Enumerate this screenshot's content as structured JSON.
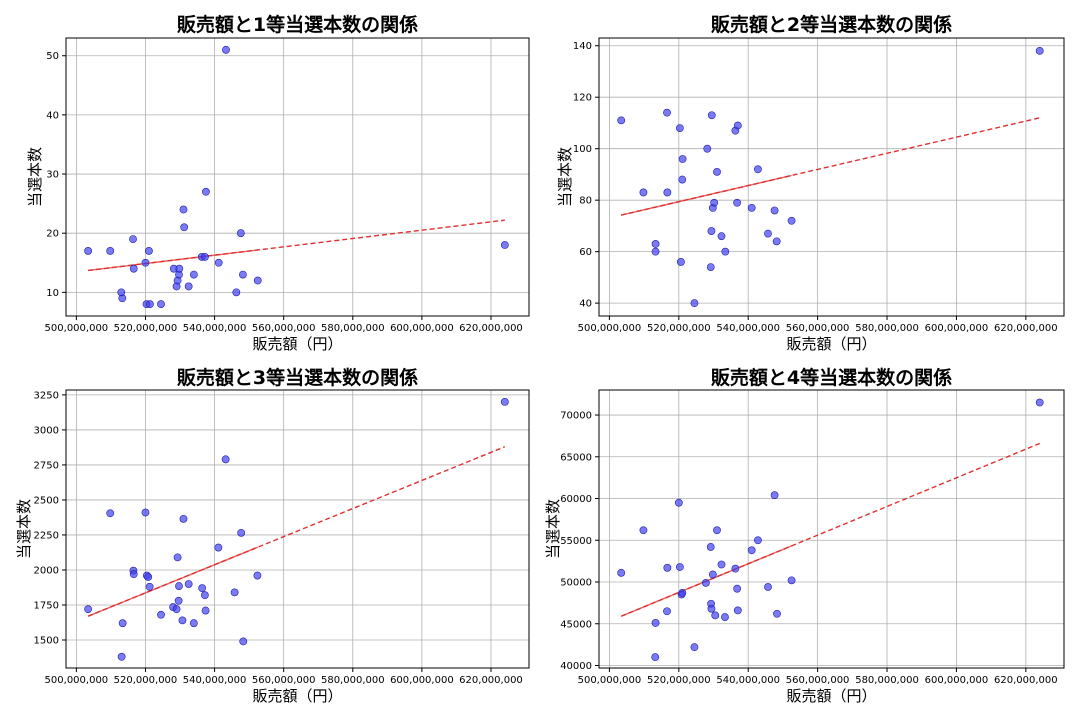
{
  "colors": {
    "point": "#3b3bf0",
    "point_edge": "#1f1fa8",
    "trend": "#e03030",
    "grid": "#b0b0b0"
  },
  "chart_data": [
    {
      "type": "scatter",
      "title": "販売額と1等当選本数の関係",
      "xlabel": "販売額（円）",
      "ylabel": "当選本数",
      "xlim": [
        497000000,
        631000000
      ],
      "ylim": [
        6,
        53
      ],
      "xticks": [
        500000000,
        520000000,
        540000000,
        560000000,
        580000000,
        600000000,
        620000000
      ],
      "xticklabels": [
        "500,000,000",
        "520,000,000",
        "540,000,000",
        "560,000,000",
        "580,000,000",
        "600,000,000",
        "620,000,000"
      ],
      "yticks": [
        10,
        20,
        30,
        40,
        50
      ],
      "yticklabels": [
        "10",
        "20",
        "30",
        "40",
        "50"
      ],
      "grid": true,
      "points": [
        [
          503400000,
          17
        ],
        [
          509800000,
          17
        ],
        [
          513300000,
          9
        ],
        [
          513000000,
          10
        ],
        [
          516600000,
          14
        ],
        [
          516400000,
          19
        ],
        [
          520000000,
          15
        ],
        [
          520300000,
          8
        ],
        [
          521000000,
          17
        ],
        [
          521300000,
          8
        ],
        [
          524500000,
          8
        ],
        [
          528200000,
          14
        ],
        [
          529000000,
          11
        ],
        [
          529300000,
          12
        ],
        [
          529700000,
          13
        ],
        [
          529800000,
          14
        ],
        [
          531000000,
          24
        ],
        [
          531200000,
          21
        ],
        [
          532500000,
          11
        ],
        [
          534000000,
          13
        ],
        [
          536300000,
          16
        ],
        [
          537200000,
          16
        ],
        [
          537500000,
          27
        ],
        [
          541200000,
          15
        ],
        [
          543300000,
          51
        ],
        [
          546300000,
          10
        ],
        [
          547600000,
          20
        ],
        [
          548200000,
          13
        ],
        [
          552500000,
          12
        ],
        [
          624000000,
          18
        ]
      ],
      "trend": {
        "x": [
          503400000,
          624000000
        ],
        "y": [
          13.7,
          22.2
        ],
        "solid_to_x": 552500000
      }
    },
    {
      "type": "scatter",
      "title": "販売額と2等当選本数の関係",
      "xlabel": "販売額（円）",
      "ylabel": "当選本数",
      "xlim": [
        497000000,
        631000000
      ],
      "ylim": [
        35,
        143
      ],
      "xticks": [
        500000000,
        520000000,
        540000000,
        560000000,
        580000000,
        600000000,
        620000000
      ],
      "xticklabels": [
        "500,000,000",
        "520,000,000",
        "540,000,000",
        "560,000,000",
        "580,000,000",
        "600,000,000",
        "620,000,000"
      ],
      "yticks": [
        40,
        60,
        80,
        100,
        120,
        140
      ],
      "yticklabels": [
        "40",
        "60",
        "80",
        "100",
        "120",
        "140"
      ],
      "grid": true,
      "points": [
        [
          503400000,
          111
        ],
        [
          509800000,
          83
        ],
        [
          513300000,
          63
        ],
        [
          513300000,
          60
        ],
        [
          516600000,
          114
        ],
        [
          516700000,
          83
        ],
        [
          520300000,
          108
        ],
        [
          520600000,
          56
        ],
        [
          521000000,
          88
        ],
        [
          521100000,
          96
        ],
        [
          524500000,
          40
        ],
        [
          528200000,
          100
        ],
        [
          529200000,
          54
        ],
        [
          529400000,
          68
        ],
        [
          529500000,
          113
        ],
        [
          529800000,
          77
        ],
        [
          530200000,
          79
        ],
        [
          531000000,
          91
        ],
        [
          532300000,
          66
        ],
        [
          533400000,
          60
        ],
        [
          536300000,
          107
        ],
        [
          536800000,
          79
        ],
        [
          537000000,
          109
        ],
        [
          541000000,
          77
        ],
        [
          542800000,
          92
        ],
        [
          545700000,
          67
        ],
        [
          547600000,
          76
        ],
        [
          548200000,
          64
        ],
        [
          552500000,
          72
        ],
        [
          624000000,
          138
        ]
      ],
      "trend": {
        "x": [
          503400000,
          624000000
        ],
        "y": [
          74.2,
          112.0
        ],
        "solid_to_x": 552500000
      }
    },
    {
      "type": "scatter",
      "title": "販売額と3等当選本数の関係",
      "xlabel": "販売額（円）",
      "ylabel": "当選本数",
      "xlim": [
        497000000,
        631000000
      ],
      "ylim": [
        1300,
        3285
      ],
      "xticks": [
        500000000,
        520000000,
        540000000,
        560000000,
        580000000,
        600000000,
        620000000
      ],
      "xticklabels": [
        "500,000,000",
        "520,000,000",
        "540,000,000",
        "560,000,000",
        "580,000,000",
        "600,000,000",
        "620,000,000"
      ],
      "yticks": [
        1500,
        1750,
        2000,
        2250,
        2500,
        2750,
        3000,
        3250
      ],
      "yticklabels": [
        "1500",
        "1750",
        "2000",
        "2250",
        "2500",
        "2750",
        "3000",
        "3250"
      ],
      "grid": true,
      "points": [
        [
          503400000,
          1720
        ],
        [
          509800000,
          2405
        ],
        [
          513100000,
          1380
        ],
        [
          513400000,
          1620
        ],
        [
          516500000,
          1995
        ],
        [
          516600000,
          1970
        ],
        [
          520000000,
          2410
        ],
        [
          520400000,
          1960
        ],
        [
          520800000,
          1950
        ],
        [
          521200000,
          1880
        ],
        [
          524500000,
          1680
        ],
        [
          528000000,
          1735
        ],
        [
          529000000,
          1720
        ],
        [
          529300000,
          2090
        ],
        [
          529600000,
          1780
        ],
        [
          529700000,
          1885
        ],
        [
          530700000,
          1640
        ],
        [
          531000000,
          2365
        ],
        [
          532500000,
          1900
        ],
        [
          534000000,
          1620
        ],
        [
          536400000,
          1870
        ],
        [
          537200000,
          1820
        ],
        [
          537400000,
          1710
        ],
        [
          541100000,
          2160
        ],
        [
          543200000,
          2790
        ],
        [
          545800000,
          1840
        ],
        [
          547700000,
          2265
        ],
        [
          548300000,
          1490
        ],
        [
          552400000,
          1960
        ],
        [
          624000000,
          3200
        ]
      ],
      "trend": {
        "x": [
          503400000,
          624000000
        ],
        "y": [
          1670,
          2880
        ],
        "solid_to_x": 552500000
      }
    },
    {
      "type": "scatter",
      "title": "販売額と4等当選本数の関係",
      "xlabel": "販売額（円）",
      "ylabel": "当選本数",
      "xlim": [
        497000000,
        631000000
      ],
      "ylim": [
        39700,
        73000
      ],
      "xticks": [
        500000000,
        520000000,
        540000000,
        560000000,
        580000000,
        600000000,
        620000000
      ],
      "xticklabels": [
        "500,000,000",
        "520,000,000",
        "540,000,000",
        "560,000,000",
        "580,000,000",
        "600,000,000",
        "620,000,000"
      ],
      "yticks": [
        40000,
        45000,
        50000,
        55000,
        60000,
        65000,
        70000
      ],
      "yticklabels": [
        "40000",
        "45000",
        "50000",
        "55000",
        "60000",
        "65000",
        "70000"
      ],
      "grid": true,
      "points": [
        [
          503400000,
          51100
        ],
        [
          509800000,
          56200
        ],
        [
          513200000,
          41000
        ],
        [
          513300000,
          45100
        ],
        [
          516600000,
          46500
        ],
        [
          516700000,
          51700
        ],
        [
          520000000,
          59500
        ],
        [
          520300000,
          51800
        ],
        [
          520800000,
          48500
        ],
        [
          521000000,
          48700
        ],
        [
          524500000,
          42200
        ],
        [
          527800000,
          49900
        ],
        [
          529200000,
          54200
        ],
        [
          529300000,
          47400
        ],
        [
          529400000,
          46800
        ],
        [
          529800000,
          50900
        ],
        [
          530500000,
          46000
        ],
        [
          531000000,
          56200
        ],
        [
          532300000,
          52100
        ],
        [
          533300000,
          45800
        ],
        [
          536300000,
          51600
        ],
        [
          536800000,
          49200
        ],
        [
          537000000,
          46600
        ],
        [
          541000000,
          53800
        ],
        [
          542800000,
          55000
        ],
        [
          545700000,
          49400
        ],
        [
          547600000,
          60400
        ],
        [
          548300000,
          46200
        ],
        [
          552500000,
          50200
        ],
        [
          624000000,
          71500
        ]
      ],
      "trend": {
        "x": [
          503400000,
          624000000
        ],
        "y": [
          45900,
          66600
        ],
        "solid_to_x": 552500000
      }
    }
  ]
}
